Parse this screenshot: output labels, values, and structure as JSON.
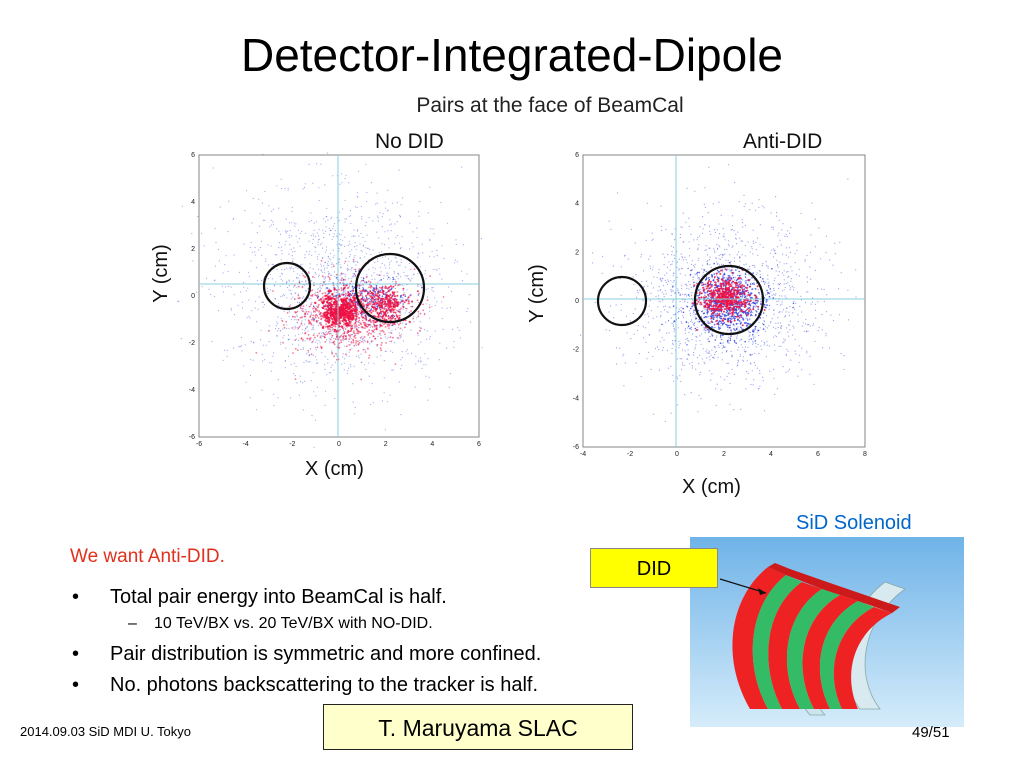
{
  "slide": {
    "title": "Detector-Integrated-Dipole",
    "figure_caption": "Pairs at the face of BeamCal"
  },
  "plots": [
    {
      "title": "No DID",
      "xlabel": "X (cm)",
      "ylabel": "Y (cm)",
      "xticks": [
        "-6",
        "-4",
        "-2",
        "0",
        "2",
        "4",
        "6"
      ],
      "yticks": [
        "6",
        "4",
        "2",
        "0",
        "-2",
        "-4",
        "-6"
      ]
    },
    {
      "title": "Anti-DID",
      "xlabel": "X (cm)",
      "ylabel": "Y (cm)",
      "xticks": [
        "-4",
        "-2",
        "0",
        "2",
        "4",
        "6",
        "8"
      ],
      "yticks": [
        "6",
        "4",
        "2",
        "0",
        "-2",
        "-4",
        "-6"
      ]
    }
  ],
  "colors": {
    "blue_pairs": "#3344dd",
    "red_pairs": "#ee1144",
    "accent_red_text": "#e0301e",
    "solenoid_caption": "#0066cc",
    "did_box": "#ffff00",
    "author_box": "#ffffcc"
  },
  "notes": {
    "intro": "We want Anti-DID.",
    "bullets": [
      {
        "text": "Total pair energy into BeamCal is half.",
        "sub": "10 TeV/BX vs. 20 TeV/BX with NO-DID."
      },
      {
        "text": "Pair distribution is symmetric and more confined."
      },
      {
        "text": "No. photons backscattering to the tracker is half."
      }
    ],
    "bullet_marker": "•",
    "sub_marker": "–"
  },
  "solenoid": {
    "caption": "SiD Solenoid",
    "did_label": "DID"
  },
  "footer": {
    "left": "2014.09.03 SiD MDI U. Tokyo",
    "author": "T. Maruyama SLAC",
    "page": "49/51"
  }
}
